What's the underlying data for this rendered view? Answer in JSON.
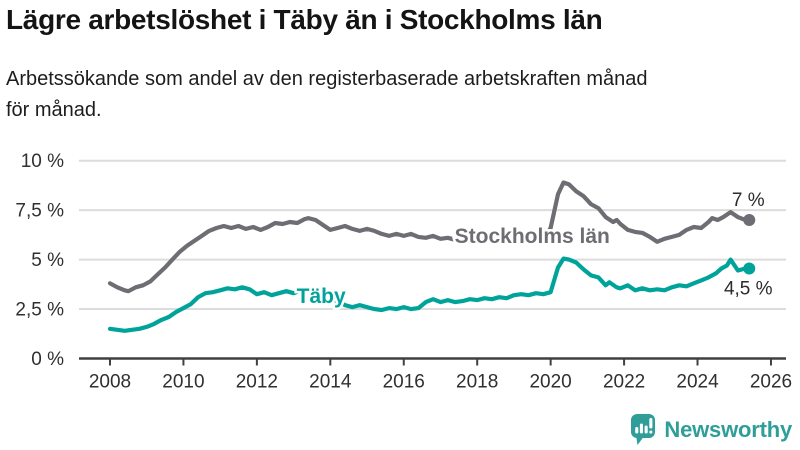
{
  "header": {
    "title": "Lägre arbetslöshet i Täby än i Stockholms län",
    "subtitle_line1": "Arbetssökande som andel av den registerbaserade arbetskraften månad",
    "subtitle_line2": "för månad."
  },
  "footer": {
    "brand": "Newsworthy"
  },
  "colors": {
    "stockholm_line": "#6d6d73",
    "taby_line": "#00a39a",
    "grid": "#dcdcdc",
    "axis": "#404040",
    "tick_text": "#303030",
    "annotation_text": "#2b2b2b",
    "logo": "#2f9e99"
  },
  "chart_data": {
    "type": "line",
    "title": "Lägre arbetslöshet i Täby än i Stockholms län",
    "subtitle": "Arbetssökande som andel av den registerbaserade arbetskraften månad för månad.",
    "xlabel": "",
    "ylabel": "",
    "xlim": [
      2007.2,
      2026.4
    ],
    "ylim": [
      0,
      10.8
    ],
    "grid": "horizontal",
    "legend": "inline-labels",
    "x_ticks": [
      2008,
      2010,
      2012,
      2014,
      2016,
      2018,
      2020,
      2022,
      2024,
      2026
    ],
    "y_ticks": [
      {
        "v": 0,
        "label": "0 %"
      },
      {
        "v": 2.5,
        "label": "2,5 %"
      },
      {
        "v": 5,
        "label": "5 %"
      },
      {
        "v": 7.5,
        "label": "7,5 %"
      },
      {
        "v": 10,
        "label": "10 %"
      }
    ],
    "series": [
      {
        "name": "Stockholms län",
        "slug": "stockholms-lan",
        "color": "#6d6d73",
        "end_label": "7 %",
        "end_label_side": "above",
        "label_pos": {
          "x": 2019.5,
          "y": 6.2
        },
        "points": [
          [
            2008.0,
            3.8
          ],
          [
            2008.2,
            3.6
          ],
          [
            2008.4,
            3.45
          ],
          [
            2008.5,
            3.4
          ],
          [
            2008.7,
            3.6
          ],
          [
            2008.9,
            3.7
          ],
          [
            2009.1,
            3.9
          ],
          [
            2009.3,
            4.25
          ],
          [
            2009.5,
            4.6
          ],
          [
            2009.7,
            5.0
          ],
          [
            2009.9,
            5.4
          ],
          [
            2010.1,
            5.7
          ],
          [
            2010.3,
            5.95
          ],
          [
            2010.5,
            6.2
          ],
          [
            2010.7,
            6.45
          ],
          [
            2010.9,
            6.6
          ],
          [
            2011.1,
            6.7
          ],
          [
            2011.3,
            6.6
          ],
          [
            2011.5,
            6.7
          ],
          [
            2011.7,
            6.55
          ],
          [
            2011.9,
            6.65
          ],
          [
            2012.1,
            6.5
          ],
          [
            2012.3,
            6.65
          ],
          [
            2012.5,
            6.85
          ],
          [
            2012.7,
            6.8
          ],
          [
            2012.9,
            6.9
          ],
          [
            2013.1,
            6.85
          ],
          [
            2013.3,
            7.05
          ],
          [
            2013.4,
            7.1
          ],
          [
            2013.6,
            7.0
          ],
          [
            2013.8,
            6.75
          ],
          [
            2014.0,
            6.5
          ],
          [
            2014.2,
            6.6
          ],
          [
            2014.4,
            6.7
          ],
          [
            2014.6,
            6.55
          ],
          [
            2014.8,
            6.45
          ],
          [
            2015.0,
            6.55
          ],
          [
            2015.2,
            6.45
          ],
          [
            2015.4,
            6.3
          ],
          [
            2015.6,
            6.2
          ],
          [
            2015.8,
            6.3
          ],
          [
            2016.0,
            6.2
          ],
          [
            2016.2,
            6.3
          ],
          [
            2016.4,
            6.15
          ],
          [
            2016.6,
            6.1
          ],
          [
            2016.8,
            6.2
          ],
          [
            2017.0,
            6.05
          ],
          [
            2017.2,
            6.1
          ],
          [
            2017.4,
            6.0
          ],
          [
            2017.6,
            6.05
          ],
          [
            2017.8,
            5.95
          ],
          [
            2018.0,
            6.05
          ],
          [
            2018.2,
            6.0
          ],
          [
            2018.4,
            6.1
          ],
          [
            2018.6,
            5.95
          ],
          [
            2018.8,
            6.0
          ],
          [
            2019.0,
            6.05
          ],
          [
            2019.2,
            5.95
          ],
          [
            2019.4,
            6.0
          ],
          [
            2019.6,
            6.05
          ],
          [
            2019.8,
            6.0
          ],
          [
            2020.0,
            6.6
          ],
          [
            2020.2,
            8.3
          ],
          [
            2020.35,
            8.9
          ],
          [
            2020.5,
            8.8
          ],
          [
            2020.7,
            8.45
          ],
          [
            2020.9,
            8.2
          ],
          [
            2021.1,
            7.8
          ],
          [
            2021.3,
            7.6
          ],
          [
            2021.5,
            7.15
          ],
          [
            2021.7,
            6.9
          ],
          [
            2021.8,
            7.0
          ],
          [
            2021.9,
            6.8
          ],
          [
            2022.1,
            6.5
          ],
          [
            2022.3,
            6.4
          ],
          [
            2022.5,
            6.35
          ],
          [
            2022.7,
            6.15
          ],
          [
            2022.9,
            5.9
          ],
          [
            2023.1,
            6.05
          ],
          [
            2023.3,
            6.15
          ],
          [
            2023.5,
            6.25
          ],
          [
            2023.7,
            6.5
          ],
          [
            2023.9,
            6.65
          ],
          [
            2024.1,
            6.6
          ],
          [
            2024.3,
            6.9
          ],
          [
            2024.4,
            7.1
          ],
          [
            2024.55,
            7.0
          ],
          [
            2024.7,
            7.15
          ],
          [
            2024.9,
            7.4
          ],
          [
            2025.1,
            7.15
          ],
          [
            2025.3,
            7.0
          ]
        ]
      },
      {
        "name": "Täby",
        "slug": "taby",
        "color": "#00a39a",
        "end_label": "4,5 %",
        "end_label_side": "below",
        "label_pos": {
          "x": 2013.75,
          "y": 3.15
        },
        "points": [
          [
            2008.0,
            1.5
          ],
          [
            2008.2,
            1.45
          ],
          [
            2008.4,
            1.4
          ],
          [
            2008.6,
            1.45
          ],
          [
            2008.8,
            1.5
          ],
          [
            2009.0,
            1.6
          ],
          [
            2009.2,
            1.75
          ],
          [
            2009.4,
            1.95
          ],
          [
            2009.6,
            2.1
          ],
          [
            2009.8,
            2.35
          ],
          [
            2010.0,
            2.55
          ],
          [
            2010.2,
            2.75
          ],
          [
            2010.4,
            3.1
          ],
          [
            2010.6,
            3.3
          ],
          [
            2010.8,
            3.35
          ],
          [
            2011.0,
            3.45
          ],
          [
            2011.2,
            3.55
          ],
          [
            2011.4,
            3.5
          ],
          [
            2011.6,
            3.6
          ],
          [
            2011.8,
            3.5
          ],
          [
            2012.0,
            3.25
          ],
          [
            2012.2,
            3.35
          ],
          [
            2012.4,
            3.2
          ],
          [
            2012.6,
            3.3
          ],
          [
            2012.8,
            3.4
          ],
          [
            2013.0,
            3.3
          ],
          [
            2013.2,
            3.45
          ],
          [
            2013.4,
            3.5
          ],
          [
            2013.6,
            3.35
          ],
          [
            2013.8,
            3.15
          ],
          [
            2014.0,
            3.0
          ],
          [
            2014.2,
            2.9
          ],
          [
            2014.4,
            2.7
          ],
          [
            2014.6,
            2.6
          ],
          [
            2014.8,
            2.7
          ],
          [
            2015.0,
            2.6
          ],
          [
            2015.2,
            2.5
          ],
          [
            2015.4,
            2.45
          ],
          [
            2015.6,
            2.55
          ],
          [
            2015.8,
            2.5
          ],
          [
            2016.0,
            2.6
          ],
          [
            2016.2,
            2.5
          ],
          [
            2016.4,
            2.55
          ],
          [
            2016.6,
            2.85
          ],
          [
            2016.8,
            3.0
          ],
          [
            2017.0,
            2.85
          ],
          [
            2017.2,
            2.95
          ],
          [
            2017.4,
            2.85
          ],
          [
            2017.6,
            2.9
          ],
          [
            2017.8,
            3.0
          ],
          [
            2018.0,
            2.95
          ],
          [
            2018.2,
            3.05
          ],
          [
            2018.4,
            3.0
          ],
          [
            2018.6,
            3.1
          ],
          [
            2018.8,
            3.05
          ],
          [
            2019.0,
            3.2
          ],
          [
            2019.2,
            3.25
          ],
          [
            2019.4,
            3.2
          ],
          [
            2019.6,
            3.3
          ],
          [
            2019.8,
            3.25
          ],
          [
            2020.0,
            3.35
          ],
          [
            2020.2,
            4.6
          ],
          [
            2020.35,
            5.05
          ],
          [
            2020.5,
            5.0
          ],
          [
            2020.7,
            4.85
          ],
          [
            2020.9,
            4.5
          ],
          [
            2021.1,
            4.2
          ],
          [
            2021.3,
            4.1
          ],
          [
            2021.5,
            3.7
          ],
          [
            2021.6,
            3.85
          ],
          [
            2021.8,
            3.6
          ],
          [
            2021.9,
            3.55
          ],
          [
            2022.1,
            3.7
          ],
          [
            2022.3,
            3.45
          ],
          [
            2022.5,
            3.55
          ],
          [
            2022.7,
            3.45
          ],
          [
            2022.9,
            3.5
          ],
          [
            2023.1,
            3.45
          ],
          [
            2023.3,
            3.6
          ],
          [
            2023.5,
            3.7
          ],
          [
            2023.7,
            3.65
          ],
          [
            2023.9,
            3.8
          ],
          [
            2024.1,
            3.95
          ],
          [
            2024.3,
            4.1
          ],
          [
            2024.5,
            4.3
          ],
          [
            2024.65,
            4.55
          ],
          [
            2024.8,
            4.7
          ],
          [
            2024.9,
            5.0
          ],
          [
            2025.1,
            4.45
          ],
          [
            2025.3,
            4.55
          ]
        ]
      }
    ]
  }
}
